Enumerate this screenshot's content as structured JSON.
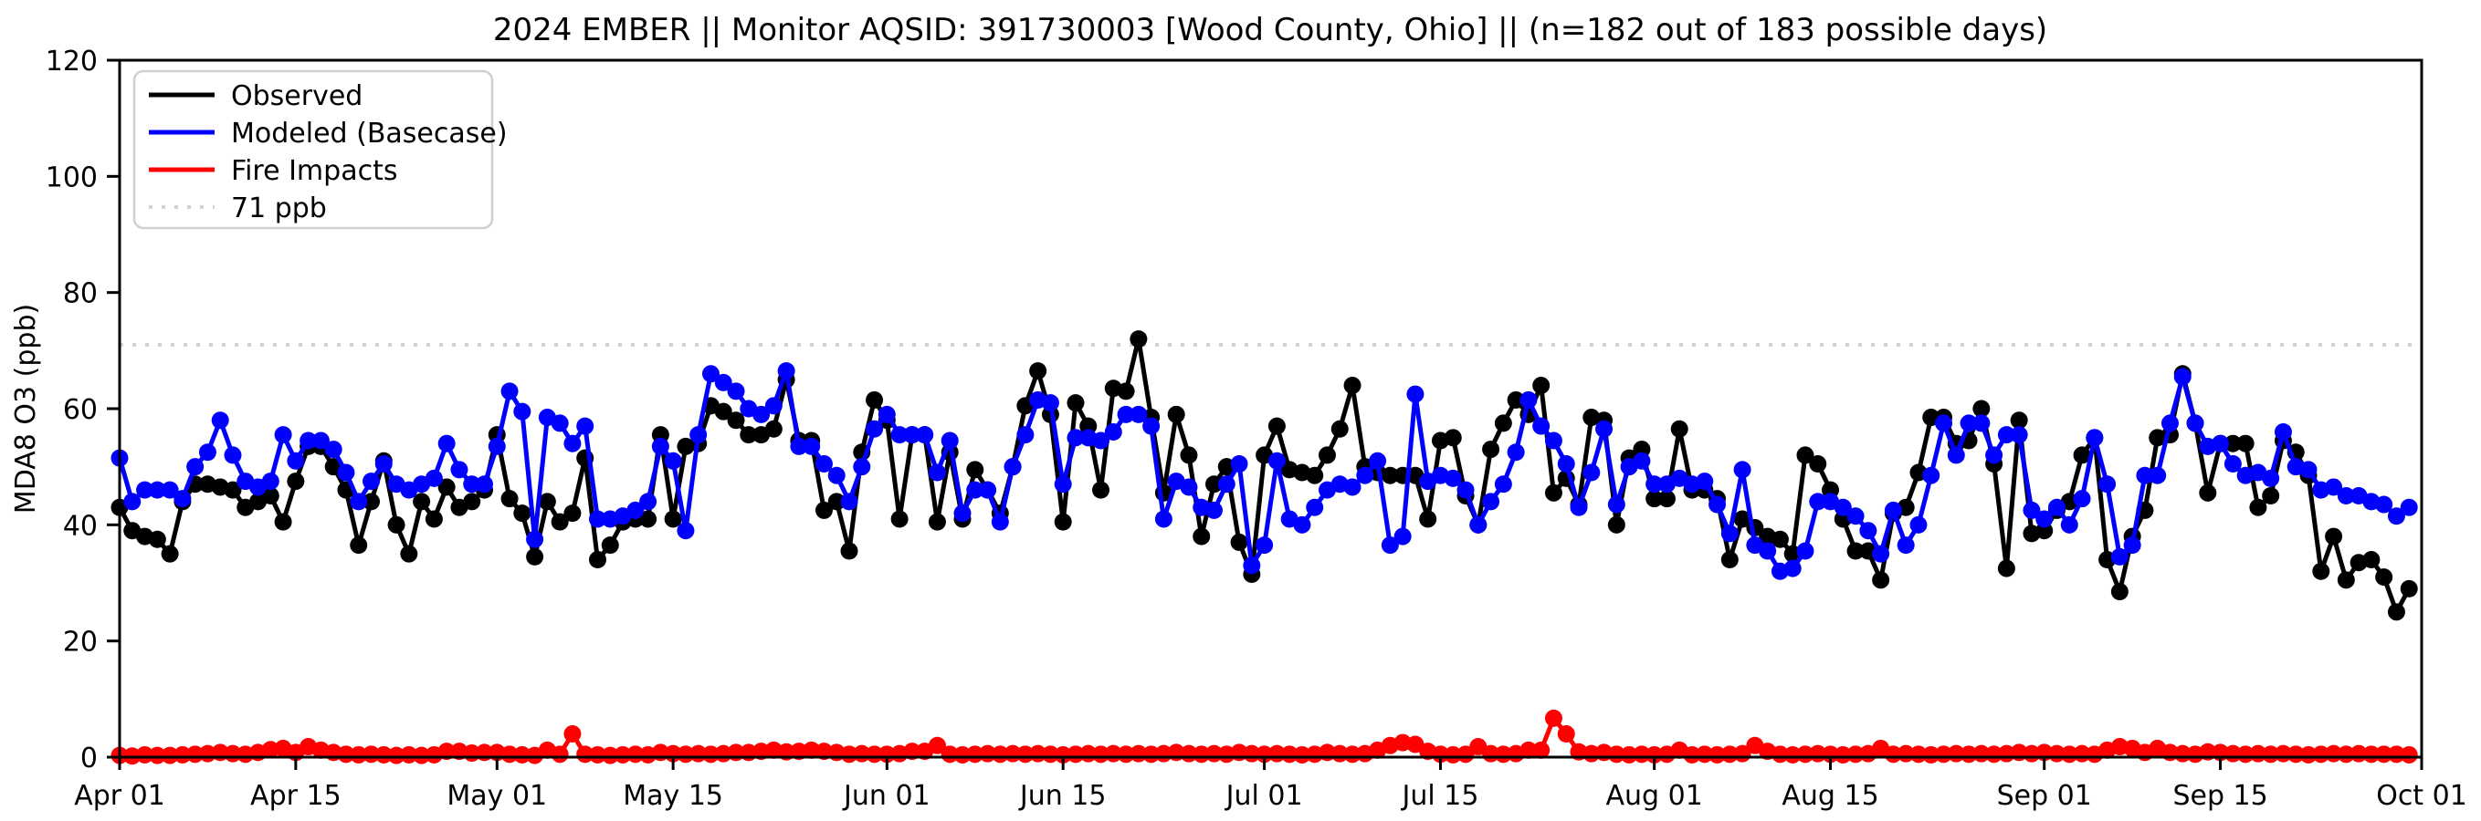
{
  "title": "2024 EMBER || Monitor AQSID: 391730003 [Wood County, Ohio] || (n=182 out of 183 possible days)",
  "axes": {
    "ylabel": "MDA8 O3 (ppb)",
    "ylim": [
      0,
      120
    ],
    "yticks": [
      0,
      20,
      40,
      60,
      80,
      100,
      120
    ],
    "xticks": [
      {
        "label": "Apr 01",
        "day": 0
      },
      {
        "label": "Apr 15",
        "day": 14
      },
      {
        "label": "May 01",
        "day": 30
      },
      {
        "label": "May 15",
        "day": 44
      },
      {
        "label": "Jun 01",
        "day": 61
      },
      {
        "label": "Jun 15",
        "day": 75
      },
      {
        "label": "Jul 01",
        "day": 91
      },
      {
        "label": "Jul 15",
        "day": 105
      },
      {
        "label": "Aug 01",
        "day": 122
      },
      {
        "label": "Aug 15",
        "day": 136
      },
      {
        "label": "Sep 01",
        "day": 153
      },
      {
        "label": "Sep 15",
        "day": 167
      },
      {
        "label": "Oct 01",
        "day": 183
      }
    ]
  },
  "legend": {
    "items": [
      {
        "label": "Observed",
        "color": "#000000",
        "style": "solid"
      },
      {
        "label": "Modeled (Basecase)",
        "color": "#0000ff",
        "style": "solid"
      },
      {
        "label": "Fire Impacts",
        "color": "#ff0000",
        "style": "solid"
      },
      {
        "label": "71 ppb",
        "color": "#d3d3d3",
        "style": "dotted"
      }
    ]
  },
  "threshold": {
    "value": 71,
    "label": "71 ppb",
    "color": "#d3d3d3"
  },
  "chart_data": {
    "type": "line",
    "title": "2024 EMBER || Monitor AQSID: 391730003 [Wood County, Ohio] || (n=182 out of 183 possible days)",
    "xlabel": "",
    "ylabel": "MDA8 O3 (ppb)",
    "ylim": [
      0,
      120
    ],
    "x_start_label": "Apr 01",
    "x_end_label": "Oct 01",
    "n_days": 183,
    "legend_position": "upper left",
    "grid": false,
    "threshold_ppb": 71,
    "series": [
      {
        "name": "Observed",
        "color": "#000000",
        "marker": "circle",
        "values": [
          43,
          39,
          38,
          37.5,
          35,
          44,
          47,
          47,
          46.5,
          46,
          43,
          44,
          45,
          40.5,
          47.5,
          53.5,
          53.5,
          50,
          46,
          36.5,
          44,
          51,
          40,
          35,
          44,
          41,
          46.5,
          43,
          44,
          46,
          55.5,
          44.5,
          42,
          34.5,
          44,
          40.5,
          42,
          51.5,
          34,
          36.5,
          40.5,
          41,
          41,
          55.5,
          41,
          53.5,
          54,
          60.5,
          59.5,
          58,
          55.5,
          55.5,
          56.5,
          65,
          54.5,
          54.5,
          42.5,
          44,
          35.5,
          52.5,
          61.5,
          58,
          41,
          55.5,
          55.5,
          40.5,
          52.5,
          41,
          49.5,
          46,
          42,
          50,
          60.5,
          66.5,
          59,
          40.5,
          61,
          57,
          46,
          63.5,
          63,
          72,
          58.5,
          45.5,
          59,
          52,
          38,
          47,
          50,
          37,
          31.5,
          52,
          57,
          49.5,
          49,
          48.5,
          52,
          56.5,
          64,
          50,
          49,
          48.5,
          48.5,
          48.5,
          41,
          54.5,
          55,
          45,
          40,
          53,
          57.5,
          61.5,
          59,
          64,
          45.5,
          48,
          43.5,
          58.5,
          58,
          40,
          51.5,
          53,
          44.5,
          44.5,
          56.5,
          46,
          46,
          44.5,
          34,
          41,
          39.5,
          38,
          37.5,
          35,
          52,
          50.5,
          46,
          41,
          35.5,
          35.5,
          30.5,
          42,
          43,
          49,
          58.5,
          58.5,
          54,
          54.5,
          60,
          50.5,
          32.5,
          58,
          38.5,
          39,
          42.5,
          44,
          52,
          55,
          34,
          28.5,
          38,
          42.5,
          55,
          55.5,
          66,
          57.5,
          45.5,
          54,
          54,
          54,
          43,
          45,
          54.5,
          52.5,
          48.5,
          32,
          38,
          30.5,
          33.5,
          34,
          31,
          25,
          29
        ]
      },
      {
        "name": "Modeled (Basecase)",
        "color": "#0000ff",
        "marker": "circle",
        "values": [
          51.5,
          44,
          46,
          46,
          46,
          44.5,
          50,
          52.5,
          58,
          52,
          47.5,
          46.5,
          47.5,
          55.5,
          51,
          54.5,
          54.5,
          53,
          49,
          44,
          47.5,
          50.5,
          47,
          46,
          47,
          48,
          54,
          49.5,
          47,
          47,
          53.5,
          63,
          59.5,
          37.5,
          58.5,
          57.5,
          54,
          57,
          41,
          41,
          41.5,
          42.5,
          44,
          53.5,
          51,
          39,
          55.5,
          66,
          64.5,
          63,
          60,
          59,
          60.5,
          66.5,
          53.5,
          53.5,
          50.5,
          48.5,
          44,
          50,
          56.5,
          59,
          55.5,
          55.5,
          55.5,
          49,
          54.5,
          42,
          46,
          46,
          40.5,
          50,
          55.5,
          61.5,
          61,
          47,
          55,
          55,
          54.5,
          56,
          59,
          59,
          57,
          41,
          47.5,
          46.5,
          43,
          42.5,
          47,
          50.5,
          33,
          36.5,
          51,
          41,
          40,
          43,
          46,
          47,
          46.5,
          48.5,
          51,
          36.5,
          38,
          62.5,
          47.5,
          48.5,
          48,
          46,
          40,
          44,
          47,
          52.5,
          61.5,
          57,
          54.5,
          50.5,
          43,
          49,
          56.5,
          43.5,
          50,
          51,
          47,
          47,
          48,
          47,
          47.5,
          43.5,
          38.5,
          49.5,
          36.5,
          35.5,
          32,
          32.5,
          35.5,
          44,
          44,
          43,
          41.5,
          39,
          35,
          42.5,
          36.5,
          40,
          48.5,
          57.5,
          52,
          57.5,
          57.5,
          52,
          55.5,
          55.5,
          42.5,
          41,
          43,
          40,
          44.5,
          55,
          47,
          34.5,
          36.5,
          48.5,
          48.5,
          57.5,
          65.5,
          57.5,
          53.5,
          54,
          50.5,
          48.5,
          49,
          48,
          56,
          50,
          49.5,
          46,
          46.5,
          45,
          45,
          44,
          43.5,
          41.5,
          43
        ]
      },
      {
        "name": "Fire Impacts",
        "color": "#ff0000",
        "marker": "circle",
        "values": [
          0.3,
          0.2,
          0.4,
          0.3,
          0.3,
          0.4,
          0.5,
          0.6,
          0.8,
          0.6,
          0.5,
          0.8,
          1.3,
          1.5,
          0.8,
          1.8,
          1.2,
          0.8,
          0.5,
          0.4,
          0.5,
          0.4,
          0.3,
          0.4,
          0.3,
          0.4,
          1.0,
          1.0,
          0.7,
          0.8,
          0.8,
          0.5,
          0.4,
          0.3,
          1.2,
          0.5,
          4.0,
          0.5,
          0.4,
          0.3,
          0.4,
          0.5,
          0.4,
          0.8,
          0.6,
          0.5,
          0.6,
          0.5,
          0.6,
          0.8,
          0.8,
          1.0,
          1.2,
          0.9,
          1.0,
          1.2,
          1.0,
          0.8,
          0.5,
          0.6,
          0.5,
          0.5,
          0.6,
          1.0,
          1.0,
          2.0,
          0.5,
          0.4,
          0.5,
          0.6,
          0.5,
          0.6,
          0.5,
          0.6,
          0.5,
          0.4,
          0.5,
          0.6,
          0.5,
          0.6,
          0.5,
          0.6,
          0.5,
          0.6,
          0.8,
          0.6,
          0.5,
          0.6,
          0.5,
          0.8,
          0.6,
          0.5,
          0.6,
          0.5,
          0.4,
          0.5,
          0.8,
          0.6,
          0.5,
          0.6,
          1.2,
          2.0,
          2.5,
          2.2,
          1.0,
          0.5,
          0.4,
          0.5,
          1.8,
          0.6,
          0.5,
          0.6,
          1.2,
          1.2,
          6.7,
          4.0,
          0.9,
          0.6,
          0.8,
          0.5,
          0.4,
          0.5,
          0.4,
          0.5,
          1.2,
          0.4,
          0.5,
          0.4,
          0.5,
          0.6,
          2.0,
          1.0,
          0.5,
          0.4,
          0.5,
          0.6,
          0.5,
          0.4,
          0.5,
          0.6,
          1.5,
          0.5,
          0.6,
          0.5,
          0.4,
          0.5,
          0.6,
          0.5,
          0.6,
          0.5,
          0.6,
          0.8,
          0.6,
          0.8,
          0.6,
          0.5,
          0.6,
          0.5,
          1.2,
          1.8,
          1.5,
          0.8,
          1.5,
          0.8,
          0.6,
          0.5,
          0.9,
          0.8,
          0.6,
          0.5,
          0.6,
          0.5,
          0.6,
          0.5,
          0.4,
          0.5,
          0.6,
          0.5,
          0.6,
          0.5,
          0.5,
          0.5,
          0.4
        ]
      }
    ]
  }
}
